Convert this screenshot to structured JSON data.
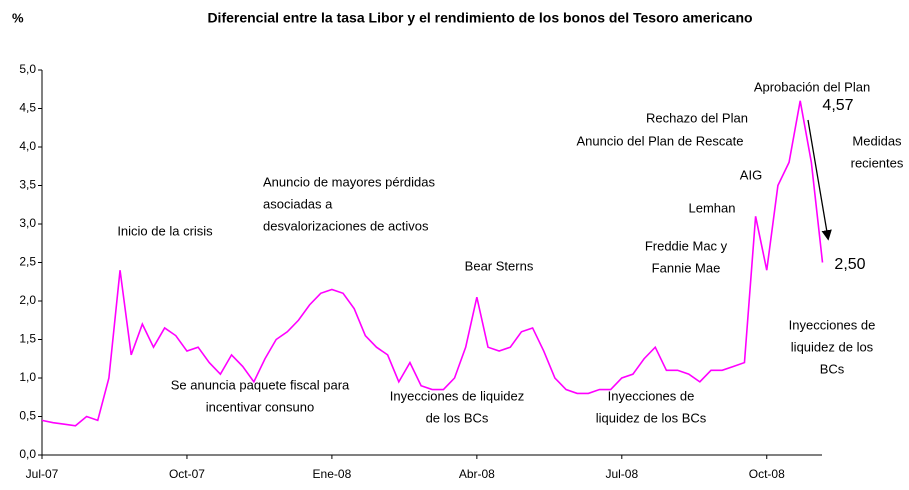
{
  "chart_data": {
    "type": "line",
    "title": "Diferencial entre la tasa Libor y el rendimiento de los bonos del Tesoro americano",
    "y_label": "%",
    "categories": [
      "Jul-07",
      null,
      null,
      null,
      null,
      null,
      null,
      null,
      null,
      null,
      null,
      null,
      null,
      "Oct-07",
      null,
      null,
      null,
      null,
      null,
      null,
      null,
      null,
      null,
      null,
      null,
      null,
      "Ene-08",
      null,
      null,
      null,
      null,
      null,
      null,
      null,
      null,
      null,
      null,
      null,
      null,
      "Abr-08",
      null,
      null,
      null,
      null,
      null,
      null,
      null,
      null,
      null,
      null,
      null,
      null,
      "Jul-08",
      null,
      null,
      null,
      null,
      null,
      null,
      null,
      null,
      null,
      null,
      null,
      null,
      "Oct-08",
      null,
      null,
      null,
      null,
      null
    ],
    "series": [
      {
        "color": "#ff00ff",
        "values": [
          0.45,
          0.42,
          0.4,
          0.38,
          0.5,
          0.45,
          1.0,
          2.4,
          1.3,
          1.7,
          1.4,
          1.65,
          1.55,
          1.35,
          1.4,
          1.2,
          1.05,
          1.3,
          1.15,
          0.95,
          1.25,
          1.5,
          1.6,
          1.75,
          1.95,
          2.1,
          2.15,
          2.1,
          1.9,
          1.55,
          1.4,
          1.3,
          0.95,
          1.2,
          0.9,
          0.85,
          0.85,
          1.0,
          1.4,
          2.05,
          1.4,
          1.35,
          1.4,
          1.6,
          1.65,
          1.35,
          1.0,
          0.85,
          0.8,
          0.8,
          0.85,
          0.85,
          1.0,
          1.05,
          1.25,
          1.4,
          1.1,
          1.1,
          1.05,
          0.95,
          1.1,
          1.1,
          1.15,
          1.2,
          3.1,
          2.4,
          3.5,
          3.8,
          4.6,
          3.8,
          2.5
        ]
      }
    ],
    "ylim": [
      0,
      5
    ],
    "yticks": [
      {
        "value": 0,
        "label": "0,0"
      },
      {
        "value": 0.5,
        "label": "0,5"
      },
      {
        "value": 1,
        "label": "1,0"
      },
      {
        "value": 1.5,
        "label": "1,5"
      },
      {
        "value": 2,
        "label": "2,0"
      },
      {
        "value": 2.5,
        "label": "2,5"
      },
      {
        "value": 3,
        "label": "3,0"
      },
      {
        "value": 3.5,
        "label": "3,5"
      },
      {
        "value": 4,
        "label": "4,0"
      },
      {
        "value": 4.5,
        "label": "4,5"
      },
      {
        "value": 5,
        "label": "5,0"
      }
    ],
    "grid": false,
    "annotations": [
      [
        "Inicio de la crisis"
      ],
      [
        "Se anuncia  paquete fiscal para",
        "incentivar consuno"
      ],
      [
        "Anuncio de mayores pérdidas",
        "asociadas a",
        "desvalorizaciones de activos"
      ],
      [
        "Bear Sterns"
      ],
      [
        "Inyecciones de liquidez",
        "de los BCs"
      ],
      [
        "Freddie Mac y",
        "Fannie Mae"
      ],
      [
        "Inyecciones de",
        "liquidez de los BCs"
      ],
      [
        "Lemhan"
      ],
      [
        "AIG"
      ],
      [
        "Rechazo del Plan"
      ],
      [
        "Anuncio del Plan de Rescate"
      ],
      [
        "Aprobación del Plan"
      ],
      [
        "Medidas",
        "recientes"
      ],
      [
        "Inyecciones de",
        "liquidez de los",
        "BCs"
      ],
      [
        "4,57"
      ],
      [
        "2,50"
      ]
    ]
  }
}
